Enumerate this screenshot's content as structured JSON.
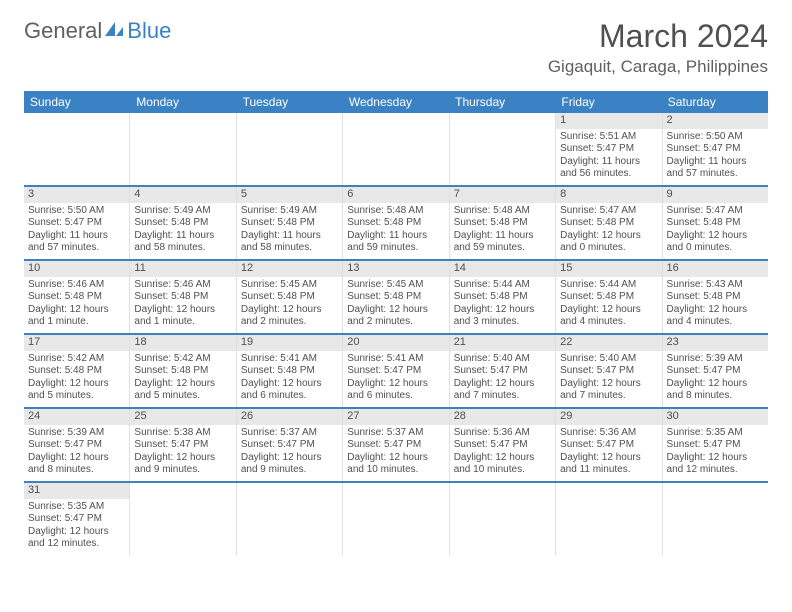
{
  "logo": {
    "text1": "General",
    "text2": "Blue"
  },
  "title": "March 2024",
  "location": "Gigaquit, Caraga, Philippines",
  "day_names": [
    "Sunday",
    "Monday",
    "Tuesday",
    "Wednesday",
    "Thursday",
    "Friday",
    "Saturday"
  ],
  "colors": {
    "header_bg": "#3b82c4",
    "daynum_bg": "#e8e8e8",
    "border": "#e0e0e0",
    "rule": "#3b82c4",
    "text": "#505050"
  },
  "weeks": [
    [
      null,
      null,
      null,
      null,
      null,
      {
        "n": "1",
        "sr": "Sunrise: 5:51 AM",
        "ss": "Sunset: 5:47 PM",
        "dl": "Daylight: 11 hours and 56 minutes."
      },
      {
        "n": "2",
        "sr": "Sunrise: 5:50 AM",
        "ss": "Sunset: 5:47 PM",
        "dl": "Daylight: 11 hours and 57 minutes."
      }
    ],
    [
      {
        "n": "3",
        "sr": "Sunrise: 5:50 AM",
        "ss": "Sunset: 5:47 PM",
        "dl": "Daylight: 11 hours and 57 minutes."
      },
      {
        "n": "4",
        "sr": "Sunrise: 5:49 AM",
        "ss": "Sunset: 5:48 PM",
        "dl": "Daylight: 11 hours and 58 minutes."
      },
      {
        "n": "5",
        "sr": "Sunrise: 5:49 AM",
        "ss": "Sunset: 5:48 PM",
        "dl": "Daylight: 11 hours and 58 minutes."
      },
      {
        "n": "6",
        "sr": "Sunrise: 5:48 AM",
        "ss": "Sunset: 5:48 PM",
        "dl": "Daylight: 11 hours and 59 minutes."
      },
      {
        "n": "7",
        "sr": "Sunrise: 5:48 AM",
        "ss": "Sunset: 5:48 PM",
        "dl": "Daylight: 11 hours and 59 minutes."
      },
      {
        "n": "8",
        "sr": "Sunrise: 5:47 AM",
        "ss": "Sunset: 5:48 PM",
        "dl": "Daylight: 12 hours and 0 minutes."
      },
      {
        "n": "9",
        "sr": "Sunrise: 5:47 AM",
        "ss": "Sunset: 5:48 PM",
        "dl": "Daylight: 12 hours and 0 minutes."
      }
    ],
    [
      {
        "n": "10",
        "sr": "Sunrise: 5:46 AM",
        "ss": "Sunset: 5:48 PM",
        "dl": "Daylight: 12 hours and 1 minute."
      },
      {
        "n": "11",
        "sr": "Sunrise: 5:46 AM",
        "ss": "Sunset: 5:48 PM",
        "dl": "Daylight: 12 hours and 1 minute."
      },
      {
        "n": "12",
        "sr": "Sunrise: 5:45 AM",
        "ss": "Sunset: 5:48 PM",
        "dl": "Daylight: 12 hours and 2 minutes."
      },
      {
        "n": "13",
        "sr": "Sunrise: 5:45 AM",
        "ss": "Sunset: 5:48 PM",
        "dl": "Daylight: 12 hours and 2 minutes."
      },
      {
        "n": "14",
        "sr": "Sunrise: 5:44 AM",
        "ss": "Sunset: 5:48 PM",
        "dl": "Daylight: 12 hours and 3 minutes."
      },
      {
        "n": "15",
        "sr": "Sunrise: 5:44 AM",
        "ss": "Sunset: 5:48 PM",
        "dl": "Daylight: 12 hours and 4 minutes."
      },
      {
        "n": "16",
        "sr": "Sunrise: 5:43 AM",
        "ss": "Sunset: 5:48 PM",
        "dl": "Daylight: 12 hours and 4 minutes."
      }
    ],
    [
      {
        "n": "17",
        "sr": "Sunrise: 5:42 AM",
        "ss": "Sunset: 5:48 PM",
        "dl": "Daylight: 12 hours and 5 minutes."
      },
      {
        "n": "18",
        "sr": "Sunrise: 5:42 AM",
        "ss": "Sunset: 5:48 PM",
        "dl": "Daylight: 12 hours and 5 minutes."
      },
      {
        "n": "19",
        "sr": "Sunrise: 5:41 AM",
        "ss": "Sunset: 5:48 PM",
        "dl": "Daylight: 12 hours and 6 minutes."
      },
      {
        "n": "20",
        "sr": "Sunrise: 5:41 AM",
        "ss": "Sunset: 5:47 PM",
        "dl": "Daylight: 12 hours and 6 minutes."
      },
      {
        "n": "21",
        "sr": "Sunrise: 5:40 AM",
        "ss": "Sunset: 5:47 PM",
        "dl": "Daylight: 12 hours and 7 minutes."
      },
      {
        "n": "22",
        "sr": "Sunrise: 5:40 AM",
        "ss": "Sunset: 5:47 PM",
        "dl": "Daylight: 12 hours and 7 minutes."
      },
      {
        "n": "23",
        "sr": "Sunrise: 5:39 AM",
        "ss": "Sunset: 5:47 PM",
        "dl": "Daylight: 12 hours and 8 minutes."
      }
    ],
    [
      {
        "n": "24",
        "sr": "Sunrise: 5:39 AM",
        "ss": "Sunset: 5:47 PM",
        "dl": "Daylight: 12 hours and 8 minutes."
      },
      {
        "n": "25",
        "sr": "Sunrise: 5:38 AM",
        "ss": "Sunset: 5:47 PM",
        "dl": "Daylight: 12 hours and 9 minutes."
      },
      {
        "n": "26",
        "sr": "Sunrise: 5:37 AM",
        "ss": "Sunset: 5:47 PM",
        "dl": "Daylight: 12 hours and 9 minutes."
      },
      {
        "n": "27",
        "sr": "Sunrise: 5:37 AM",
        "ss": "Sunset: 5:47 PM",
        "dl": "Daylight: 12 hours and 10 minutes."
      },
      {
        "n": "28",
        "sr": "Sunrise: 5:36 AM",
        "ss": "Sunset: 5:47 PM",
        "dl": "Daylight: 12 hours and 10 minutes."
      },
      {
        "n": "29",
        "sr": "Sunrise: 5:36 AM",
        "ss": "Sunset: 5:47 PM",
        "dl": "Daylight: 12 hours and 11 minutes."
      },
      {
        "n": "30",
        "sr": "Sunrise: 5:35 AM",
        "ss": "Sunset: 5:47 PM",
        "dl": "Daylight: 12 hours and 12 minutes."
      }
    ],
    [
      {
        "n": "31",
        "sr": "Sunrise: 5:35 AM",
        "ss": "Sunset: 5:47 PM",
        "dl": "Daylight: 12 hours and 12 minutes."
      },
      null,
      null,
      null,
      null,
      null,
      null
    ]
  ]
}
